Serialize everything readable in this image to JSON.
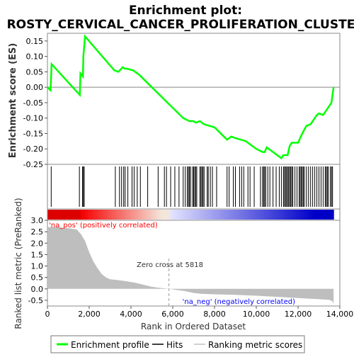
{
  "chart_data": {
    "type": "line",
    "title_line1": "Enrichment plot:",
    "title_line2": "ROSTY_CERVICAL_CANCER_PROLIFERATION_CLUSTER",
    "top_panel": {
      "ylabel": "Enrichment score (ES)",
      "ylim": [
        -0.25,
        0.175
      ],
      "y_ticks": [
        0.15,
        0.1,
        0.05,
        0.0,
        -0.05,
        -0.1,
        -0.15,
        -0.2,
        -0.25
      ],
      "y_tick_labels": [
        "0.15",
        "0.10",
        "0.05",
        "0.00",
        "-0.05",
        "-0.10",
        "-0.15",
        "-0.20",
        "-0.25"
      ],
      "series": [
        {
          "name": "Enrichment profile",
          "color": "#00ff00",
          "x": [
            0,
            150,
            200,
            1550,
            1580,
            1700,
            1720,
            1800,
            3200,
            3400,
            3600,
            3700,
            3800,
            4100,
            4400,
            5000,
            6500,
            6800,
            7000,
            7100,
            7300,
            7500,
            8000,
            8600,
            8700,
            8800,
            9000,
            9500,
            10000,
            10300,
            10400,
            10500,
            11200,
            11300,
            11500,
            11600,
            11700,
            12000,
            12200,
            12400,
            12600,
            12800,
            12900,
            13000,
            13200,
            13400,
            13600,
            13700
          ],
          "y": [
            0.0,
            -0.01,
            0.075,
            -0.025,
            0.045,
            0.035,
            0.1,
            0.165,
            0.055,
            0.05,
            0.065,
            0.06,
            0.06,
            0.055,
            0.04,
            0.0,
            -0.1,
            -0.11,
            -0.11,
            -0.115,
            -0.11,
            -0.12,
            -0.13,
            -0.17,
            -0.165,
            -0.16,
            -0.165,
            -0.175,
            -0.2,
            -0.21,
            -0.21,
            -0.195,
            -0.23,
            -0.22,
            -0.22,
            -0.19,
            -0.18,
            -0.18,
            -0.15,
            -0.125,
            -0.12,
            -0.1,
            -0.09,
            -0.085,
            -0.09,
            -0.07,
            -0.05,
            0.0
          ]
        }
      ]
    },
    "hits": [
      180,
      1530,
      1680,
      1720,
      1760,
      3250,
      3450,
      3550,
      3650,
      3720,
      3850,
      4050,
      4150,
      4300,
      4450,
      4800,
      5300,
      5600,
      5700,
      5900,
      6100,
      6300,
      6500,
      6600,
      6700,
      6750,
      6800,
      6850,
      6950,
      7000,
      7050,
      7100,
      7150,
      7300,
      7350,
      7400,
      7450,
      7500,
      7650,
      7700,
      7800,
      7900,
      8100,
      8600,
      8700,
      8900,
      9000,
      9200,
      9300,
      9400,
      9600,
      9700,
      9900,
      10200,
      10300,
      10350,
      10400,
      10450,
      10550,
      10650,
      10800,
      10950,
      11100,
      11200,
      11300,
      11350,
      11400,
      11450,
      11500,
      11550,
      11600,
      11650,
      11700,
      11750,
      11850,
      11950,
      12050,
      12100,
      12150,
      12200,
      12250,
      12300,
      12400,
      12500,
      12600,
      12700,
      12800,
      12900,
      13000,
      13100,
      13200,
      13300,
      13350,
      13400,
      13450,
      13550,
      13600,
      13650
    ],
    "bottom_panel": {
      "ylabel": "Ranked list metric (PreRanked)",
      "xlabel": "Rank in Ordered Dataset",
      "ylim": [
        -0.75,
        3.0
      ],
      "y_ticks": [
        3.0,
        2.5,
        2.0,
        1.5,
        1.0,
        0.5,
        0.0,
        -0.5
      ],
      "y_tick_labels": [
        "3.0",
        "2.5",
        "2.0",
        "1.5",
        "1.0",
        "0.5",
        "0.0",
        "-0.5"
      ],
      "xlim": [
        0,
        14000
      ],
      "x_ticks": [
        0,
        2000,
        4000,
        6000,
        8000,
        10000,
        12000,
        14000
      ],
      "x_tick_labels": [
        "0",
        "2,000",
        "4,000",
        "6,000",
        "8,000",
        "10,000",
        "12,000",
        "14,000"
      ],
      "metric_x": [
        0,
        500,
        1000,
        1400,
        1600,
        1800,
        2000,
        2200,
        2400,
        2600,
        2800,
        3000,
        3400,
        3800,
        4200,
        4600,
        5000,
        5400,
        5818,
        6200,
        6600,
        7000,
        7400,
        8000,
        9000,
        10000,
        11000,
        12000,
        13000,
        13500,
        13650,
        13700
      ],
      "metric_y": [
        2.7,
        2.7,
        2.65,
        2.6,
        2.4,
        2.1,
        1.6,
        1.2,
        0.9,
        0.65,
        0.5,
        0.42,
        0.38,
        0.33,
        0.27,
        0.18,
        0.09,
        0.04,
        0.0,
        -0.05,
        -0.1,
        -0.18,
        -0.22,
        -0.24,
        -0.26,
        -0.3,
        -0.35,
        -0.4,
        -0.45,
        -0.48,
        -0.55,
        -0.65
      ],
      "na_pos_label": "'na_pos' (positively correlated)",
      "na_neg_label": "'na_neg' (negatively correlated)",
      "zero_cross_label": "Zero cross at 5818",
      "zero_cross": 5818
    },
    "legend": {
      "placement": "bottom",
      "items": [
        {
          "label": "Enrichment profile",
          "color": "#00ff00"
        },
        {
          "label": "Hits",
          "color": "#000000"
        },
        {
          "label": "Ranking metric scores",
          "color": "#c0c0c0"
        }
      ]
    },
    "colors": {
      "profile": "#00ff00",
      "metric_fill": "#bebebe",
      "pos_label": "#ff0000",
      "neg_label": "#0000ff"
    }
  }
}
